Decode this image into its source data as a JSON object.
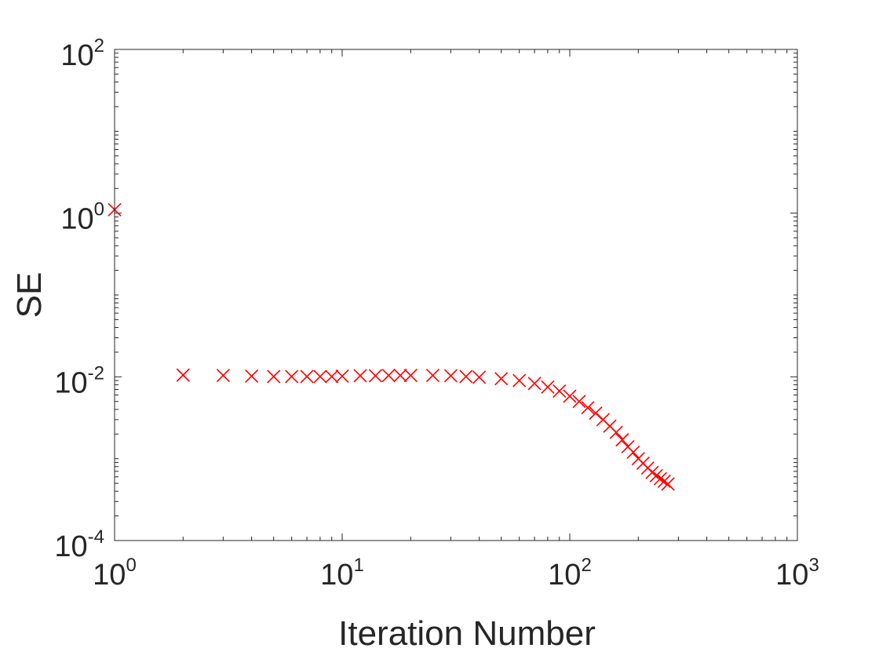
{
  "chart_data": {
    "type": "scatter",
    "title": "",
    "xlabel": "Iteration Number",
    "ylabel": "SE",
    "xscale": "log",
    "yscale": "log",
    "xlim": [
      1,
      1000
    ],
    "ylim": [
      0.0001,
      100
    ],
    "xticks": [
      {
        "base": "10",
        "exp": "0"
      },
      {
        "base": "10",
        "exp": "1"
      },
      {
        "base": "10",
        "exp": "2"
      },
      {
        "base": "10",
        "exp": "3"
      }
    ],
    "yticks": [
      {
        "base": "10",
        "exp": "-4"
      },
      {
        "base": "10",
        "exp": "-2"
      },
      {
        "base": "10",
        "exp": "0"
      },
      {
        "base": "10",
        "exp": "2"
      }
    ],
    "grid": false,
    "box": true,
    "legend": "none",
    "marker": "x",
    "marker_color": "#ff0000",
    "series": [
      {
        "x": [
          1,
          2,
          3,
          4,
          5,
          6,
          7,
          8,
          9,
          10,
          12,
          14,
          16,
          18,
          20,
          25,
          30,
          35,
          40,
          50,
          60,
          70,
          80,
          90,
          100,
          110,
          120,
          130,
          140,
          150,
          160,
          170,
          180,
          190,
          200,
          210,
          220,
          230,
          240,
          250,
          260,
          270
        ],
        "y": [
          1.1,
          0.0105,
          0.0104,
          0.0102,
          0.0101,
          0.0101,
          0.0101,
          0.0101,
          0.0101,
          0.0102,
          0.0103,
          0.0103,
          0.0104,
          0.0104,
          0.0104,
          0.0104,
          0.0103,
          0.0101,
          0.0099,
          0.0095,
          0.009,
          0.0083,
          0.0075,
          0.0067,
          0.0058,
          0.005,
          0.0042,
          0.0036,
          0.003,
          0.0025,
          0.0021,
          0.0017,
          0.0014,
          0.0012,
          0.001,
          0.00088,
          0.00077,
          0.00068,
          0.00062,
          0.00057,
          0.00053,
          0.00049
        ]
      }
    ]
  }
}
